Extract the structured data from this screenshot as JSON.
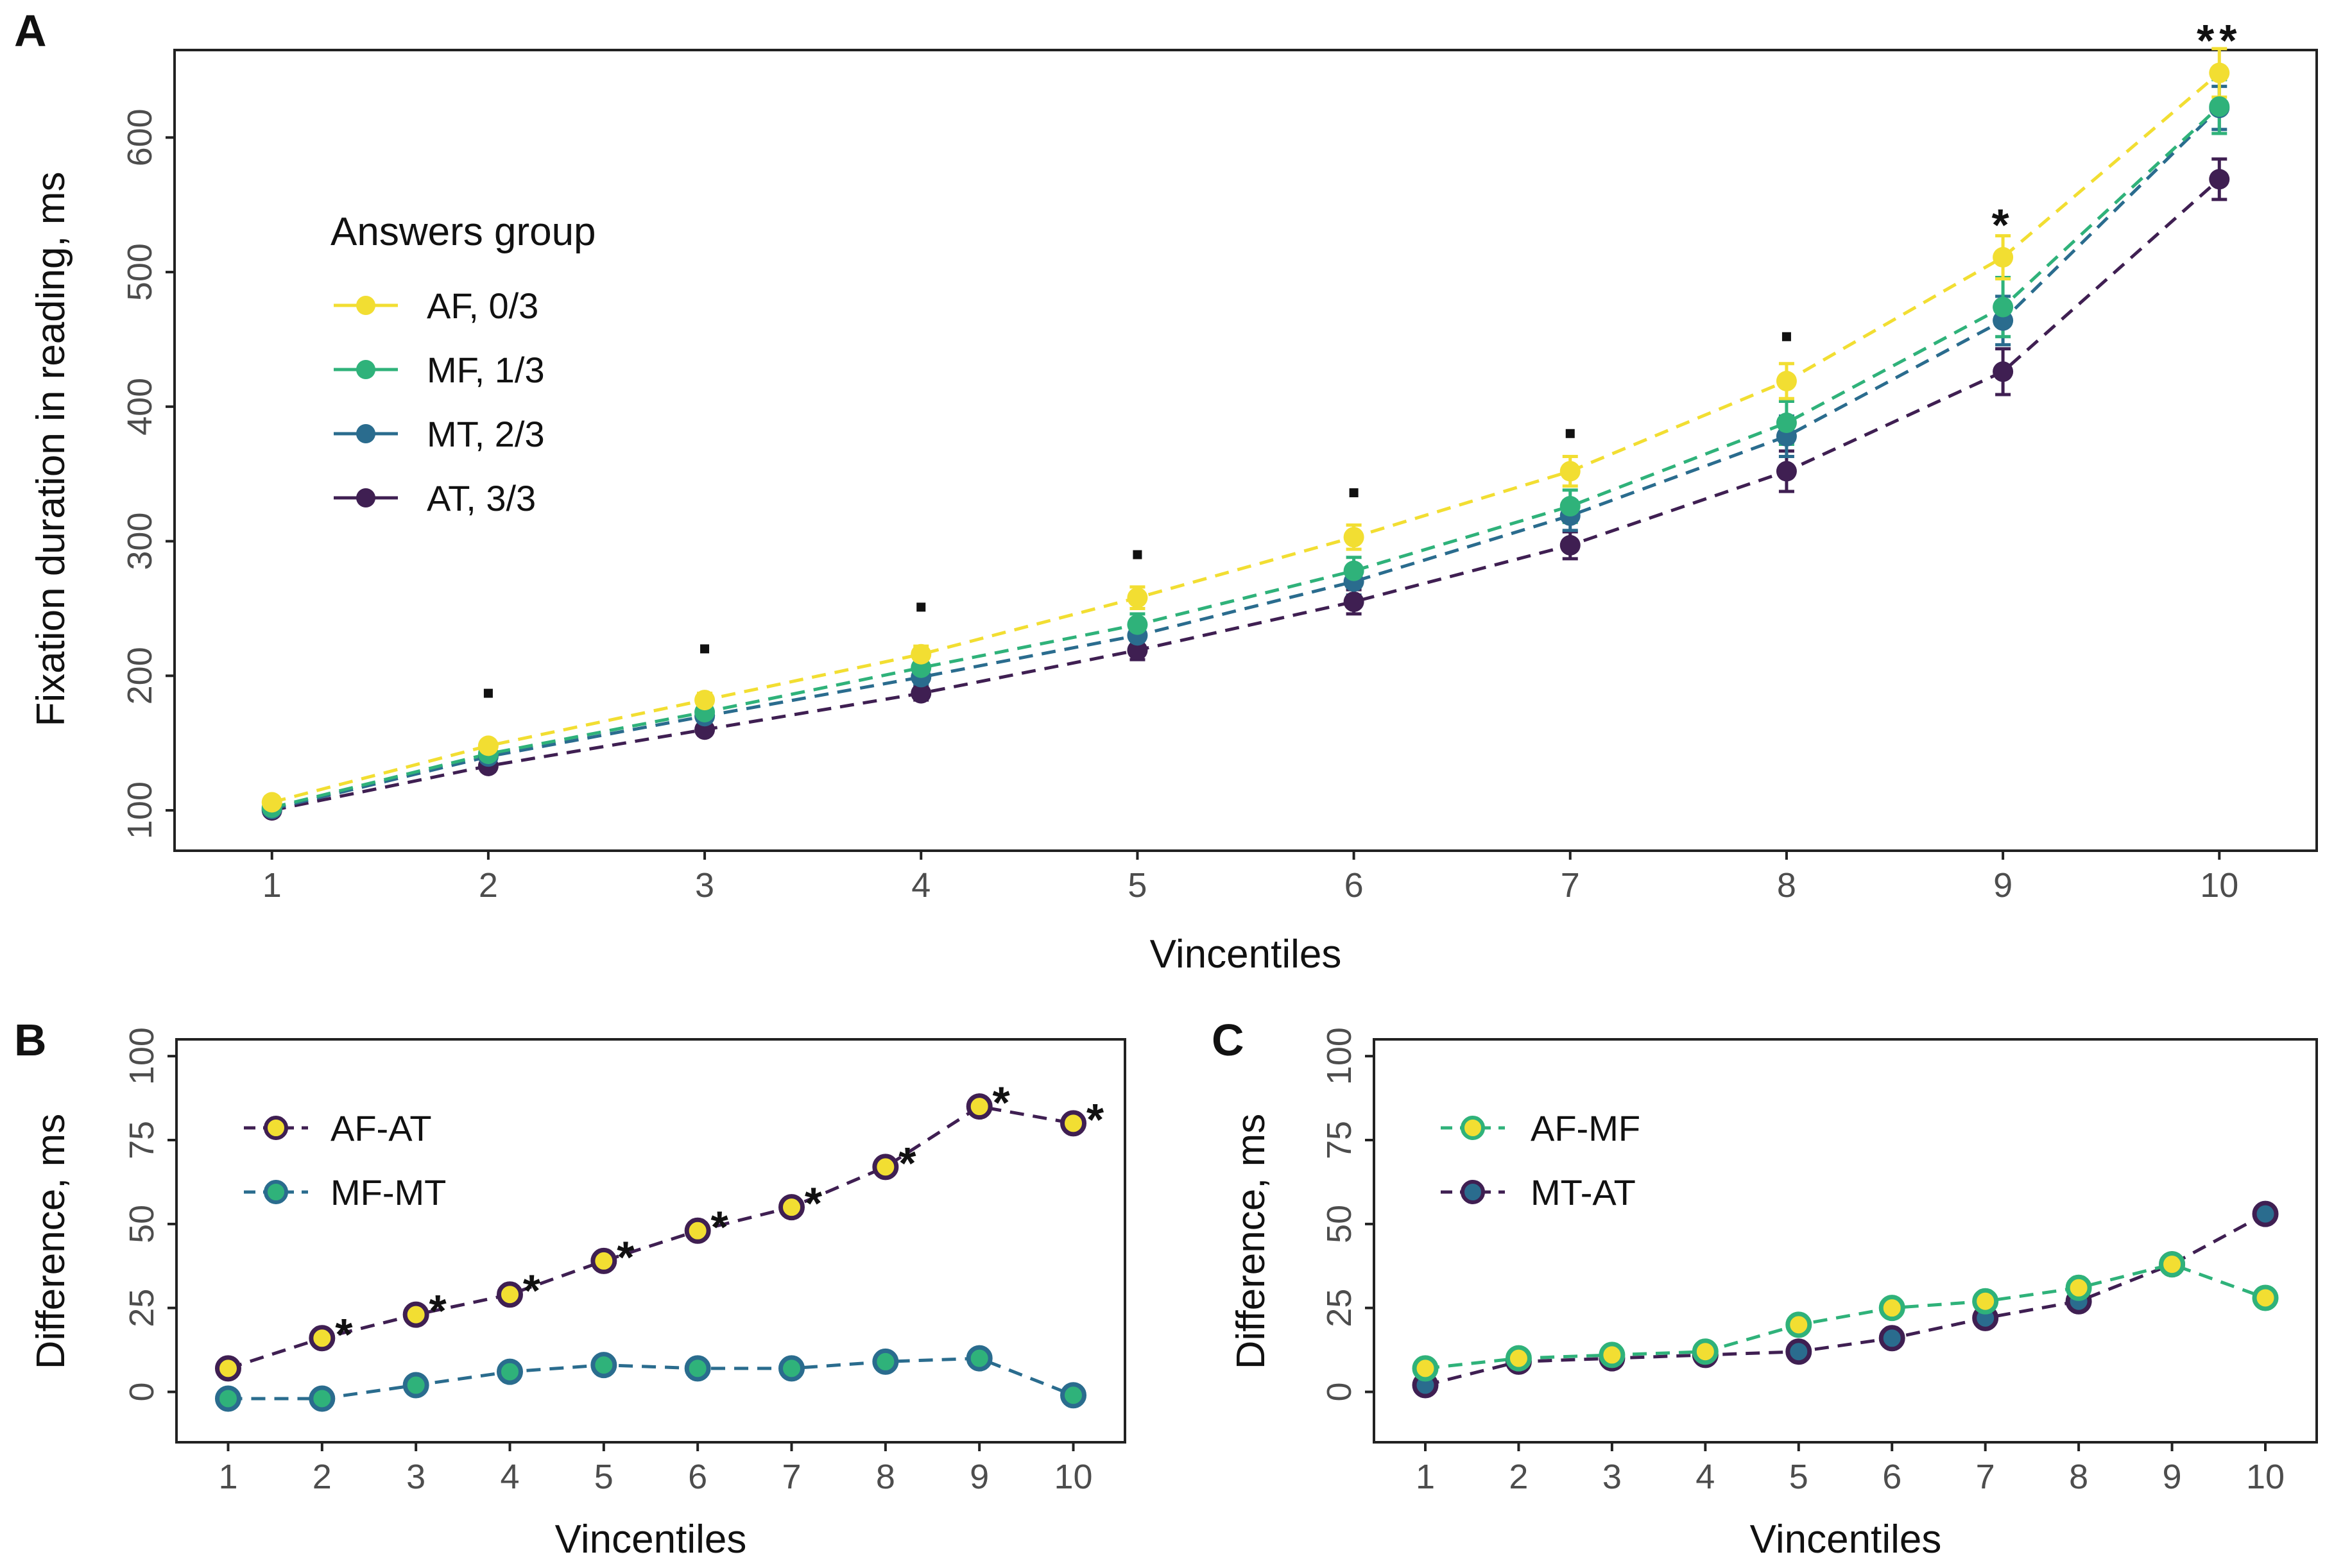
{
  "colors": {
    "AF": "#f2de32",
    "MF": "#2fb27a",
    "MT": "#2a6c8e",
    "AT": "#3f1f52",
    "axis": "#222222",
    "tick_text": "#4d4d4d"
  },
  "chart_data": [
    {
      "id": "A",
      "panel_label": "A",
      "type": "line",
      "xlabel": "Vincentiles",
      "ylabel": "Fixation duration in reading, ms",
      "xlim": [
        0.55,
        10.45
      ],
      "ylim": [
        70,
        665
      ],
      "xticks": [
        1,
        2,
        3,
        4,
        5,
        6,
        7,
        8,
        9,
        10
      ],
      "yticks": [
        100,
        200,
        300,
        400,
        500,
        600
      ],
      "legend": {
        "title": "Answers group",
        "position": "top-left"
      },
      "x": [
        1,
        2,
        3,
        4,
        5,
        6,
        7,
        8,
        9,
        10
      ],
      "series": [
        {
          "key": "AF",
          "name": "AF, 0/3",
          "values": [
            106,
            148,
            182,
            216,
            258,
            303,
            352,
            419,
            511,
            648
          ],
          "err": [
            3,
            4,
            5,
            6,
            8,
            9,
            11,
            13,
            16,
            18
          ]
        },
        {
          "key": "MF",
          "name": "MF, 1/3",
          "values": [
            102,
            142,
            173,
            206,
            238,
            278,
            326,
            388,
            474,
            623
          ],
          "err": [
            3,
            4,
            5,
            6,
            8,
            10,
            12,
            16,
            22,
            20
          ]
        },
        {
          "key": "MT",
          "name": "MT, 2/3",
          "values": [
            101,
            140,
            170,
            199,
            230,
            270,
            319,
            378,
            464,
            622
          ],
          "err": [
            3,
            4,
            5,
            6,
            8,
            10,
            11,
            15,
            18,
            16
          ]
        },
        {
          "key": "AT",
          "name": "AT, 3/3",
          "values": [
            100,
            133,
            160,
            187,
            219,
            255,
            297,
            352,
            426,
            569
          ],
          "err": [
            3,
            4,
            4,
            5,
            7,
            9,
            10,
            15,
            17,
            15
          ]
        }
      ],
      "annotations": [
        {
          "x": 2,
          "y": 187,
          "text": "."
        },
        {
          "x": 3,
          "y": 220,
          "text": "."
        },
        {
          "x": 4,
          "y": 251,
          "text": "."
        },
        {
          "x": 5,
          "y": 290,
          "text": "."
        },
        {
          "x": 6,
          "y": 336,
          "text": "."
        },
        {
          "x": 7,
          "y": 380,
          "text": "."
        },
        {
          "x": 8,
          "y": 452,
          "text": "."
        },
        {
          "x": 9,
          "y": 538,
          "text": "*"
        },
        {
          "x": 10,
          "y": 675,
          "text": "**"
        }
      ]
    },
    {
      "id": "B",
      "panel_label": "B",
      "type": "line",
      "xlabel": "Vincentiles",
      "ylabel": "Difference, ms",
      "xlim": [
        0.45,
        10.55
      ],
      "ylim": [
        -15,
        105
      ],
      "xticks": [
        1,
        2,
        3,
        4,
        5,
        6,
        7,
        8,
        9,
        10
      ],
      "yticks": [
        0,
        25,
        50,
        75,
        100
      ],
      "legend": {
        "title": "",
        "position": "top-left"
      },
      "x": [
        1,
        2,
        3,
        4,
        5,
        6,
        7,
        8,
        9,
        10
      ],
      "series": [
        {
          "name": "AF-AT",
          "fill": "#f2de32",
          "stroke": "#3f1f52",
          "line": "#3f1f52",
          "values": [
            7,
            16,
            23,
            29,
            39,
            48,
            55,
            67,
            85,
            80
          ]
        },
        {
          "name": "MF-MT",
          "fill": "#2fb27a",
          "stroke": "#2a6c8e",
          "line": "#2a6c8e",
          "values": [
            -2,
            -2,
            2,
            6,
            8,
            7,
            7,
            9,
            10,
            -1
          ]
        }
      ],
      "annotations": [
        {
          "x": 2,
          "y": 16,
          "text": "*"
        },
        {
          "x": 3,
          "y": 23,
          "text": "*"
        },
        {
          "x": 4,
          "y": 29,
          "text": "*"
        },
        {
          "x": 5,
          "y": 39,
          "text": "*"
        },
        {
          "x": 6,
          "y": 48,
          "text": "*"
        },
        {
          "x": 7,
          "y": 55,
          "text": "*"
        },
        {
          "x": 8,
          "y": 67,
          "text": "*"
        },
        {
          "x": 9,
          "y": 85,
          "text": "*"
        },
        {
          "x": 10,
          "y": 80,
          "text": "*"
        }
      ]
    },
    {
      "id": "C",
      "panel_label": "C",
      "type": "line",
      "xlabel": "Vincentiles",
      "ylabel": "Difference, ms",
      "xlim": [
        0.45,
        10.55
      ],
      "ylim": [
        -15,
        105
      ],
      "xticks": [
        1,
        2,
        3,
        4,
        5,
        6,
        7,
        8,
        9,
        10
      ],
      "yticks": [
        0,
        25,
        50,
        75,
        100
      ],
      "legend": {
        "title": "",
        "position": "top-left"
      },
      "x": [
        1,
        2,
        3,
        4,
        5,
        6,
        7,
        8,
        9,
        10
      ],
      "series": [
        {
          "name": "AF-MF",
          "fill": "#f2de32",
          "stroke": "#2fb27a",
          "line": "#2fb27a",
          "values": [
            7,
            10,
            11,
            12,
            20,
            25,
            27,
            31,
            38,
            28
          ]
        },
        {
          "name": "MT-AT",
          "fill": "#2a6c8e",
          "stroke": "#3f1f52",
          "line": "#3f1f52",
          "values": [
            2,
            9,
            10,
            11,
            12,
            16,
            22,
            27,
            38,
            53
          ]
        }
      ],
      "annotations": []
    }
  ]
}
